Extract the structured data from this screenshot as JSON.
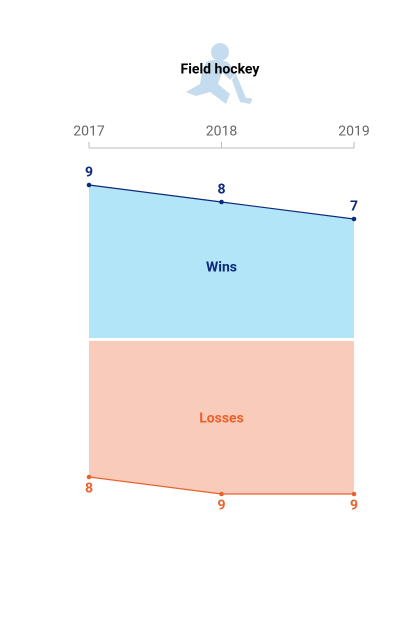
{
  "chart_data": {
    "type": "mirrored-area",
    "title": "Field hockey",
    "categories": [
      "2017",
      "2018",
      "2019"
    ],
    "series": [
      {
        "name": "Wins",
        "color": "#0d2a7a",
        "fill": "#b3e5f8",
        "values": [
          9,
          8,
          7
        ]
      },
      {
        "name": "Losses",
        "color": "#e9622c",
        "fill": "#f9cbbb",
        "values": [
          8,
          9,
          9
        ]
      }
    ]
  }
}
